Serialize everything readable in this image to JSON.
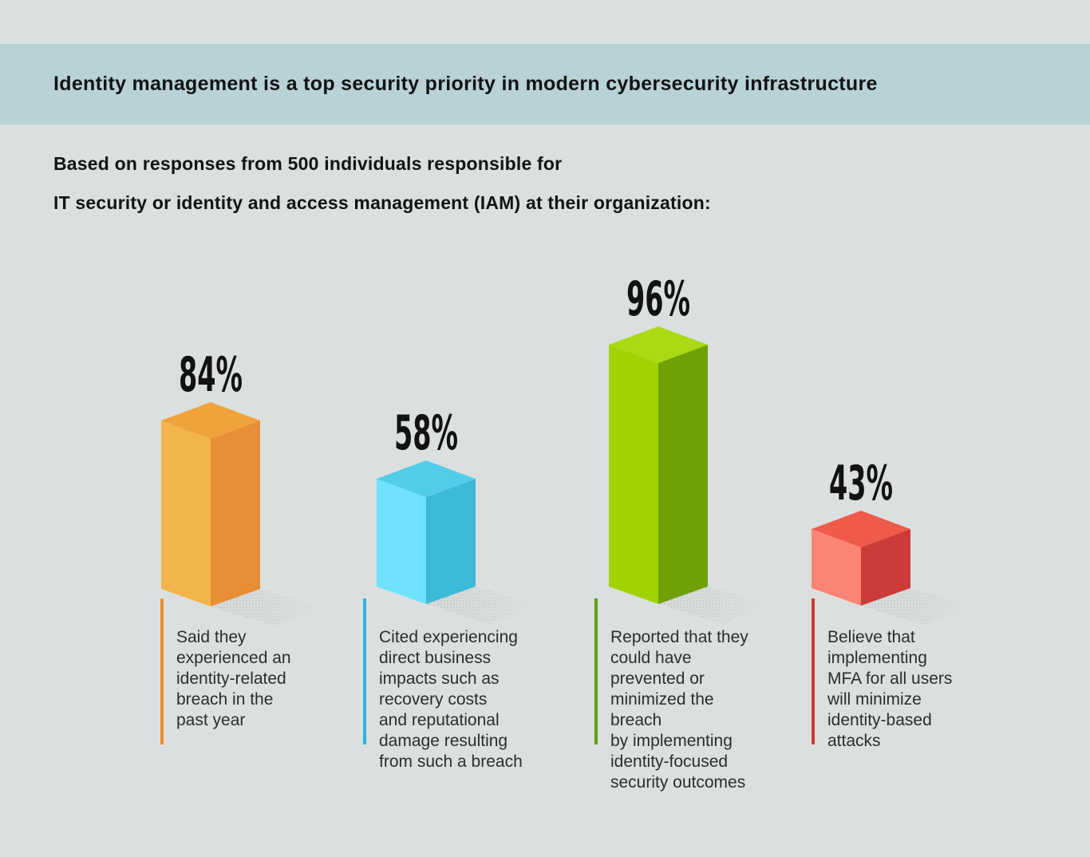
{
  "colors": {
    "background": "#dcdfdf",
    "band": "#b8d2d8",
    "title_text": "#111414",
    "body_text": "#2b2e2e",
    "label_text": "#121212",
    "shadow_dots": "#a9aeae"
  },
  "header": {
    "title": "Identity management is a top security priority in modern cybersecurity infrastructure"
  },
  "intro": {
    "line1": "Based on responses from 500 individuals responsible for",
    "line2": "IT security or identity and access management (IAM) at their organization:"
  },
  "chart_data": {
    "type": "bar",
    "style": "3d-isometric-columns",
    "unit": "percent",
    "title": "Identity management is a top security priority in modern cybersecurity infrastructure",
    "xlabel": "",
    "ylabel": "",
    "legend": "none",
    "grid": "off",
    "categories": [
      "Said they experienced an identity-related breach in the past year",
      "Cited experiencing direct business impacts such as recovery costs and reputational damage resulting from such a breach",
      "Reported that they could have prevented or minimized the breach by implementing identity-focused security outcomes",
      "Believe that implementing MFA for all users will minimize identity-based attacks"
    ],
    "values": [
      84,
      58,
      96,
      43
    ],
    "bars": [
      {
        "value": 84,
        "label": "84%",
        "caption": "Said they\nexperienced an\nidentity-related\nbreach in the\npast year",
        "color_left": "#f2b54c",
        "color_right": "#e88e35",
        "color_top": "#f0a23b",
        "accent": "#ee8d22"
      },
      {
        "value": 58,
        "label": "58%",
        "caption": "Cited experiencing\ndirect business\nimpacts such as\nrecovery costs\nand reputational\ndamage resulting\nfrom such a breach",
        "color_left": "#6ee1fc",
        "color_right": "#3bbad8",
        "color_top": "#52cde9",
        "accent": "#29b7d9"
      },
      {
        "value": 96,
        "label": "96%",
        "caption": "Reported that they\ncould have\nprevented or\nminimized the\nbreach\nby implementing\nidentity-focused\nsecurity outcomes",
        "color_left": "#9fd303",
        "color_right": "#70a104",
        "color_top": "#a9da12",
        "accent": "#5aa202"
      },
      {
        "value": 43,
        "label": "43%",
        "caption": "Believe that\nimplementing\nMFA for all users\nwill minimize\nidentity-based\nattacks",
        "color_left": "#fb8575",
        "color_right": "#cc3b37",
        "color_top": "#ef5a4a",
        "accent": "#d43b31"
      }
    ]
  }
}
